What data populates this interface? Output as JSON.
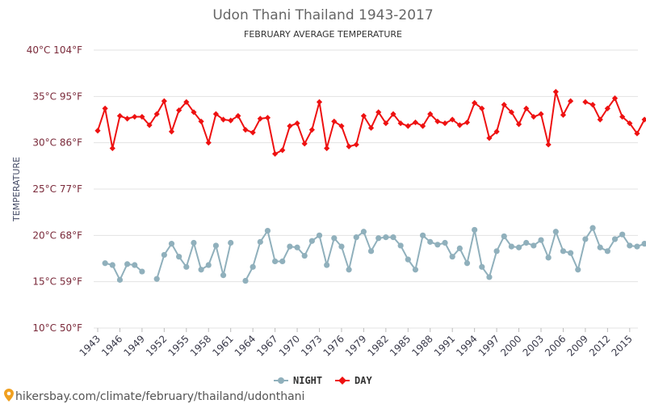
{
  "chart_data": {
    "type": "line",
    "title": "Udon Thani Thailand 1943-2017",
    "subtitle": "FEBRUARY AVERAGE TEMPERATURE",
    "ylabel": "TEMPERATURE",
    "xlabel": "",
    "ylim": [
      10,
      40
    ],
    "xlim": [
      1943,
      2017
    ],
    "yticks": [
      {
        "value": 10,
        "label": "10°C 50°F"
      },
      {
        "value": 15,
        "label": "15°C 59°F"
      },
      {
        "value": 20,
        "label": "20°C 68°F"
      },
      {
        "value": 25,
        "label": "25°C 77°F"
      },
      {
        "value": 30,
        "label": "30°C 86°F"
      },
      {
        "value": 35,
        "label": "35°C 95°F"
      },
      {
        "value": 40,
        "label": "40°C 104°F"
      }
    ],
    "xticks": [
      1943,
      1946,
      1949,
      1952,
      1955,
      1958,
      1961,
      1964,
      1967,
      1970,
      1973,
      1976,
      1979,
      1982,
      1985,
      1988,
      1991,
      1994,
      1997,
      2000,
      2003,
      2006,
      2009,
      2012,
      2015
    ],
    "grid": true,
    "legend_position": "bottom",
    "series": [
      {
        "name": "NIGHT",
        "color": "#90b0bc",
        "marker": "circle",
        "values": [
          null,
          17.0,
          16.8,
          15.2,
          16.9,
          16.8,
          16.1,
          null,
          15.3,
          17.9,
          19.1,
          17.7,
          16.6,
          19.2,
          16.3,
          16.8,
          18.9,
          15.7,
          19.2,
          null,
          15.1,
          16.6,
          19.3,
          20.5,
          17.2,
          17.2,
          18.8,
          18.7,
          17.8,
          19.4,
          20.0,
          16.8,
          19.7,
          18.8,
          16.3,
          19.8,
          20.4,
          18.3,
          19.7,
          19.8,
          19.8,
          18.9,
          17.4,
          16.3,
          20.0,
          19.3,
          19.0,
          19.2,
          17.7,
          18.6,
          17.0,
          20.6,
          16.6,
          15.5,
          18.3,
          19.9,
          18.8,
          18.7,
          19.2,
          18.9,
          19.5,
          17.6,
          20.4,
          18.3,
          18.1,
          16.3,
          19.6,
          20.8,
          18.7,
          18.3,
          19.6,
          20.1,
          18.9,
          18.8,
          19.1
        ]
      },
      {
        "name": "DAY",
        "color": "#ee1111",
        "marker": "diamond",
        "values": [
          31.3,
          33.7,
          29.4,
          32.9,
          32.6,
          32.8,
          32.8,
          31.9,
          33.1,
          34.5,
          31.2,
          33.5,
          34.4,
          33.3,
          32.3,
          30.0,
          33.1,
          32.5,
          32.4,
          32.9,
          31.4,
          31.1,
          32.6,
          32.7,
          28.8,
          29.2,
          31.8,
          32.1,
          29.9,
          31.4,
          34.4,
          29.4,
          32.3,
          31.8,
          29.6,
          29.8,
          32.9,
          31.6,
          33.3,
          32.1,
          33.1,
          32.1,
          31.8,
          32.2,
          31.8,
          33.1,
          32.3,
          32.1,
          32.5,
          31.9,
          32.2,
          34.3,
          33.7,
          30.5,
          31.2,
          34.1,
          33.3,
          32.0,
          33.7,
          32.8,
          33.1,
          29.8,
          35.5,
          33.0,
          34.5,
          null,
          34.4,
          34.1,
          32.5,
          33.7,
          34.8,
          32.8,
          32.1,
          31.0,
          32.5
        ]
      }
    ]
  },
  "legend": {
    "night_label": "NIGHT",
    "day_label": "DAY"
  },
  "footer": {
    "text": "hikersbay.com/climate/february/thailand/udonthani",
    "icon": "map-pin-icon",
    "icon_color": "#f0a020"
  }
}
